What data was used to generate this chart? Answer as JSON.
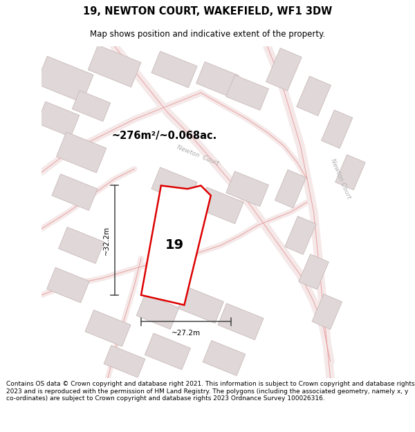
{
  "title_line1": "19, NEWTON COURT, WAKEFIELD, WF1 3DW",
  "title_line2": "Map shows position and indicative extent of the property.",
  "footer_text": "Contains OS data © Crown copyright and database right 2021. This information is subject to Crown copyright and database rights 2023 and is reproduced with the permission of HM Land Registry. The polygons (including the associated geometry, namely x, y co-ordinates) are subject to Crown copyright and database rights 2023 Ordnance Survey 100026316.",
  "area_text": "~276m²/~0.068ac.",
  "number_text": "19",
  "width_label": "~27.2m",
  "height_label": "~32.2m",
  "street_center": "Newton Court",
  "street_right": "Newton Court",
  "map_bg": "#ffffff",
  "road_fill": "#f5e8e8",
  "road_edge": "#e8a0a0",
  "building_fill": "#e0d8d8",
  "building_edge": "#c8b8b8",
  "highlight_color": "#dd0000",
  "dim_color": "#444444",
  "title_fontsize": 10.5,
  "subtitle_fontsize": 8.5,
  "footer_fontsize": 6.5
}
